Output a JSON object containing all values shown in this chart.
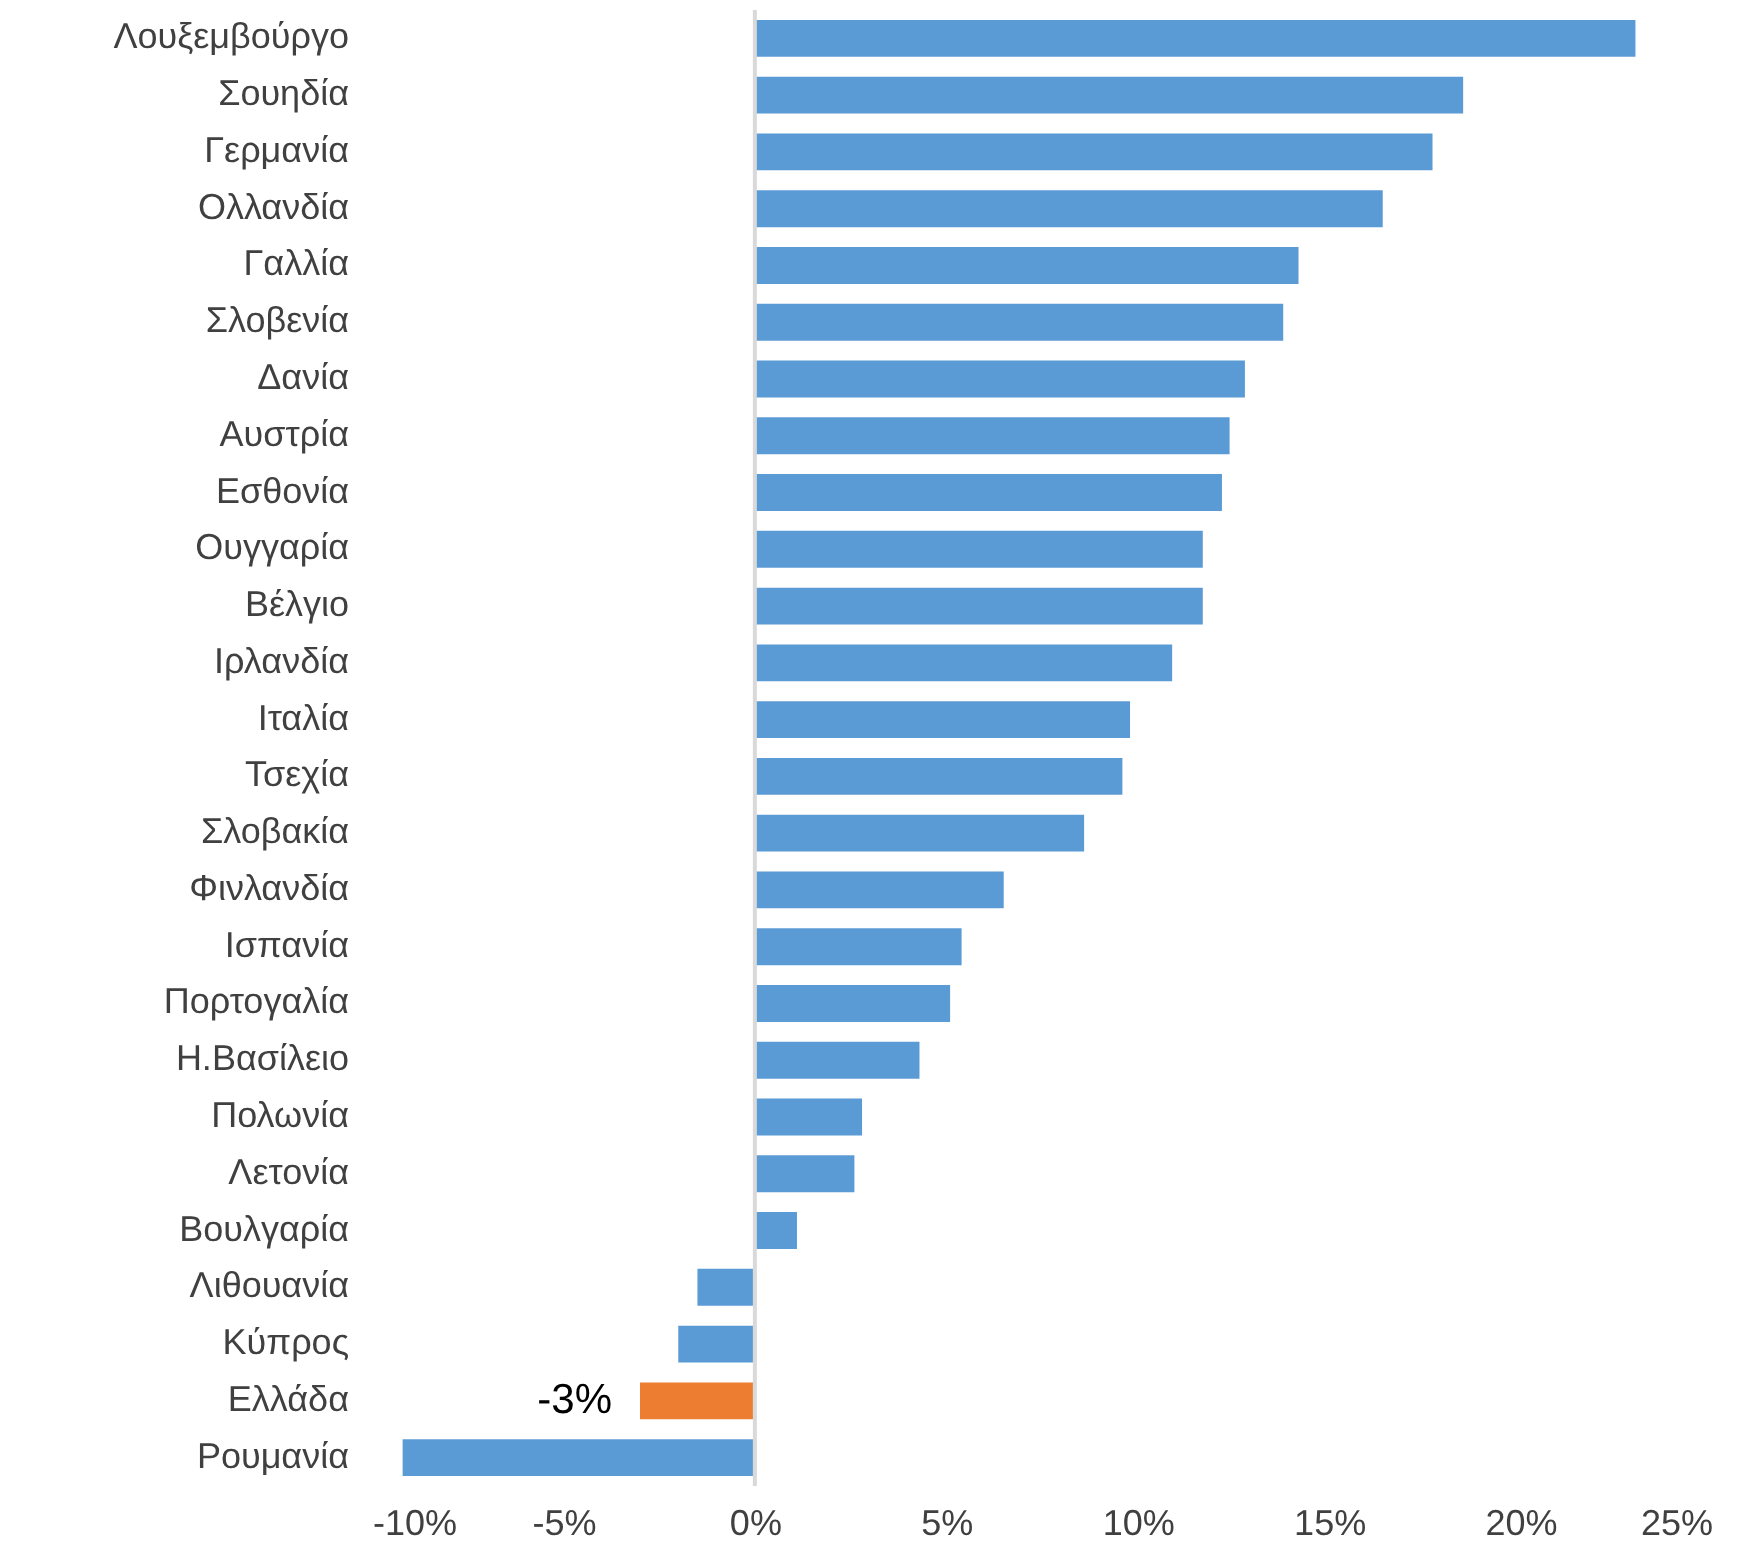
{
  "chart_data": {
    "type": "bar",
    "orientation": "horizontal",
    "categories": [
      "Λουξεμβούργο",
      "Σουηδία",
      "Γερμανία",
      "Ολλανδία",
      "Γαλλία",
      "Σλοβενία",
      "Δανία",
      "Αυστρία",
      "Εσθονία",
      "Ουγγαρία",
      "Βέλγιο",
      "Ιρλανδία",
      "Ιταλία",
      "Τσεχία",
      "Σλοβακία",
      "Φινλανδία",
      "Ισπανία",
      "Πορτογαλία",
      "Η.Βασίλειο",
      "Πολωνία",
      "Λετονία",
      "Βουλγαρία",
      "Λιθουανία",
      "Κύπρος",
      "Ελλάδα",
      "Ρουμανία"
    ],
    "values": [
      23.0,
      18.5,
      17.7,
      16.4,
      14.2,
      13.8,
      12.8,
      12.4,
      12.2,
      11.7,
      11.7,
      10.9,
      9.8,
      9.6,
      8.6,
      6.5,
      5.4,
      5.1,
      4.3,
      2.8,
      2.6,
      1.1,
      -1.5,
      -2.0,
      -3,
      -9.2
    ],
    "colors": [
      "#5b9bd5",
      "#5b9bd5",
      "#5b9bd5",
      "#5b9bd5",
      "#5b9bd5",
      "#5b9bd5",
      "#5b9bd5",
      "#5b9bd5",
      "#5b9bd5",
      "#5b9bd5",
      "#5b9bd5",
      "#5b9bd5",
      "#5b9bd5",
      "#5b9bd5",
      "#5b9bd5",
      "#5b9bd5",
      "#5b9bd5",
      "#5b9bd5",
      "#5b9bd5",
      "#5b9bd5",
      "#5b9bd5",
      "#5b9bd5",
      "#5b9bd5",
      "#5b9bd5",
      "#ed7d31",
      "#5b9bd5"
    ],
    "value_labels": [
      null,
      null,
      null,
      null,
      null,
      null,
      null,
      null,
      null,
      null,
      null,
      null,
      null,
      null,
      null,
      null,
      null,
      null,
      null,
      null,
      null,
      null,
      null,
      null,
      "-3%",
      null
    ],
    "xlim": [
      -10,
      25
    ],
    "xticks": [
      {
        "value": -10,
        "label": "-10%"
      },
      {
        "value": -5,
        "label": "-5%"
      },
      {
        "value": 0,
        "label": "0%"
      },
      {
        "value": 5,
        "label": "5%"
      },
      {
        "value": 10,
        "label": "10%"
      },
      {
        "value": 15,
        "label": "15%"
      },
      {
        "value": 20,
        "label": "20%"
      },
      {
        "value": 25,
        "label": "25%"
      }
    ],
    "ref_lines": [
      {
        "axis": "x",
        "value": 0,
        "color": "#d9d9d9"
      }
    ]
  }
}
